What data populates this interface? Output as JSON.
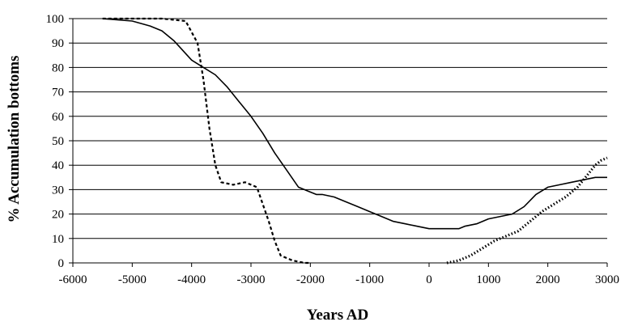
{
  "chart_data": {
    "type": "line",
    "title": "",
    "xlabel": "Years AD",
    "ylabel": "% Accumulation bottoms",
    "xlim": [
      -6000,
      3000
    ],
    "ylim": [
      0,
      100
    ],
    "xticks": [
      -6000,
      -5000,
      -4000,
      -3000,
      -2000,
      -1000,
      0,
      1000,
      2000,
      3000
    ],
    "yticks": [
      0,
      10,
      20,
      30,
      40,
      50,
      60,
      70,
      80,
      90,
      100
    ],
    "grid": "horizontal",
    "legend": "none",
    "series": [
      {
        "style": "solid",
        "color": "#000000",
        "x": [
          -5500,
          -5000,
          -4700,
          -4500,
          -4300,
          -4000,
          -3800,
          -3600,
          -3400,
          -3200,
          -3000,
          -2800,
          -2600,
          -2400,
          -2200,
          -2000,
          -1900,
          -1800,
          -1600,
          -1400,
          -1200,
          -1000,
          -800,
          -600,
          -400,
          -200,
          0,
          200,
          400,
          500,
          600,
          800,
          1000,
          1200,
          1400,
          1600,
          1800,
          2000,
          2200,
          2400,
          2600,
          2800,
          3000
        ],
        "y": [
          100,
          99,
          97,
          95,
          91,
          83,
          80,
          77,
          72,
          66,
          60,
          53,
          45,
          38,
          31,
          29,
          28,
          28,
          27,
          25,
          23,
          21,
          19,
          17,
          16,
          15,
          14,
          14,
          14,
          14,
          15,
          16,
          18,
          19,
          20,
          23,
          28,
          31,
          32,
          33,
          34,
          35,
          35
        ]
      },
      {
        "style": "dashed",
        "color": "#000000",
        "x": [
          -5500,
          -5000,
          -4500,
          -4100,
          -3900,
          -3800,
          -3700,
          -3600,
          -3500,
          -3300,
          -3100,
          -2900,
          -2700,
          -2600,
          -2500,
          -2300,
          -2100,
          -2000
        ],
        "y": [
          100,
          100,
          100,
          99,
          90,
          75,
          55,
          40,
          33,
          32,
          33,
          31,
          17,
          9,
          3,
          1,
          0,
          0
        ]
      },
      {
        "style": "dotted",
        "color": "#000000",
        "x": [
          300,
          500,
          700,
          900,
          1100,
          1300,
          1500,
          1700,
          1900,
          2100,
          2300,
          2500,
          2700,
          2800,
          2900,
          3000
        ],
        "y": [
          0,
          1,
          3,
          6,
          9,
          11,
          13,
          17,
          21,
          24,
          27,
          31,
          37,
          40,
          42,
          43
        ]
      }
    ]
  }
}
